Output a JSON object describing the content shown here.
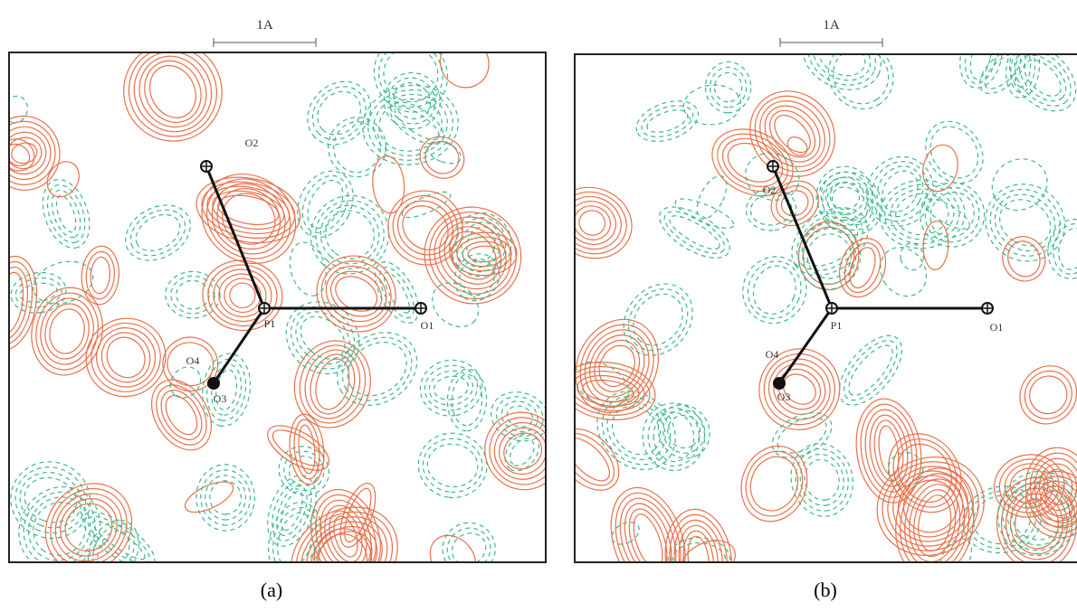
{
  "panels": [
    {
      "scale_label": "1A",
      "caption": "(a)",
      "atoms": [
        {
          "label": "O2"
        },
        {
          "label": "P1"
        },
        {
          "label": "O1"
        },
        {
          "label": "O4"
        },
        {
          "label": "O3"
        }
      ]
    },
    {
      "scale_label": "1A",
      "caption": "(b)",
      "atoms": [
        {
          "label": "O2"
        },
        {
          "label": "P1"
        },
        {
          "label": "O1"
        },
        {
          "label": "O4"
        },
        {
          "label": "O3"
        }
      ]
    }
  ]
}
